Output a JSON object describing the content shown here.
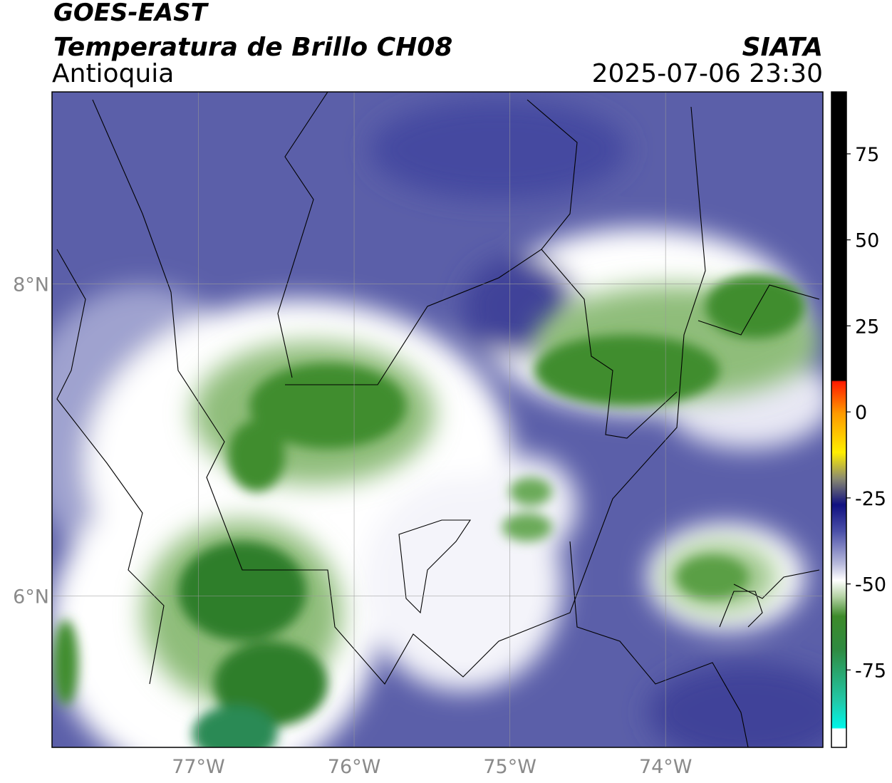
{
  "header": {
    "title": "GOES-EAST",
    "subtitle": "Temperatura de Brillo CH08",
    "region": "Antioquia",
    "source": "SIATA",
    "datetime": "2025-07-06 23:30"
  },
  "map": {
    "lonlim": [
      -77.94,
      -72.99
    ],
    "latlim": [
      5.03,
      9.23
    ],
    "xticks": [
      {
        "value": -77,
        "label": "77°W"
      },
      {
        "value": -76,
        "label": "76°W"
      },
      {
        "value": -75,
        "label": "75°W"
      },
      {
        "value": -74,
        "label": "74°W"
      }
    ],
    "yticks": [
      {
        "value": 8,
        "label": "8°N"
      },
      {
        "value": 6,
        "label": "6°N"
      }
    ]
  },
  "colorbar": {
    "lim": [
      -97.5,
      93
    ],
    "ticks": [
      75,
      50,
      25,
      0,
      -25,
      -50,
      -75
    ]
  }
}
